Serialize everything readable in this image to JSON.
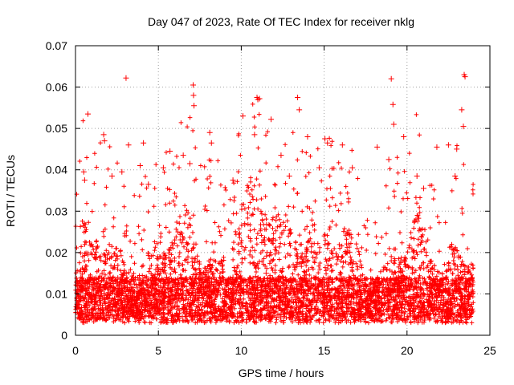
{
  "chart_data": {
    "type": "scatter",
    "title": "Day 047 of 2023, Rate Of TEC Index for receiver nklg",
    "xlabel": "GPS time / hours",
    "ylabel": "ROTI / TECUs",
    "xlim": [
      0,
      25
    ],
    "ylim": [
      0,
      0.07
    ],
    "xticks": [
      0,
      5,
      10,
      15,
      20,
      25
    ],
    "yticks": [
      0,
      0.01,
      0.02,
      0.03,
      0.04,
      0.05,
      0.06,
      0.07
    ],
    "xtick_labels": [
      "0",
      "5",
      "10",
      "15",
      "20",
      "25"
    ],
    "ytick_labels": [
      "0",
      "0.01",
      "0.02",
      "0.03",
      "0.04",
      "0.05",
      "0.06",
      "0.07"
    ],
    "grid": true,
    "marker": "plus",
    "color": "#ff0000",
    "series": [
      {
        "name": "ROTI",
        "x": [
          0.75,
          1.7,
          1.75,
          3.05,
          3.2,
          3.9,
          4.1,
          5.3,
          5.7,
          6.5,
          7.1,
          7.12,
          7.15,
          8.1,
          8.2,
          10.1,
          10.8,
          10.95,
          11.0,
          11.1,
          11.8,
          13.4,
          13.5,
          14.0,
          15.05,
          15.2,
          16.1,
          18.2,
          19.05,
          19.15,
          19.2,
          19.8,
          21.8,
          22.5,
          23.0,
          23.3,
          23.4,
          23.45,
          23.5,
          0.5,
          0.55,
          2.2,
          2.8,
          4.4,
          6.9,
          9.5,
          12.4,
          12.9,
          14.7,
          16.7,
          18.9,
          20.6,
          21.0,
          22.9,
          0.2,
          0.8,
          1.2,
          1.5,
          2.0,
          2.5,
          3.0,
          3.5,
          4.0,
          4.5,
          5.0,
          5.5,
          6.0,
          6.5,
          7.0,
          7.5,
          8.0,
          8.5,
          9.0,
          9.5,
          10.0,
          10.5,
          11.0,
          11.5,
          12.0,
          12.5,
          13.0,
          13.5,
          14.0,
          14.5,
          15.0,
          15.5,
          16.0,
          16.5,
          17.0,
          17.5,
          18.0,
          18.5,
          19.0,
          19.5,
          20.0,
          20.5,
          21.0,
          21.5,
          22.0,
          22.5,
          23.0,
          23.5,
          23.9
        ],
        "y": [
          0.0535,
          0.0485,
          0.047,
          0.0622,
          0.046,
          0.041,
          0.0465,
          0.0405,
          0.0445,
          0.0435,
          0.0605,
          0.058,
          0.0555,
          0.049,
          0.0465,
          0.053,
          0.0485,
          0.0575,
          0.057,
          0.0572,
          0.0522,
          0.0575,
          0.0545,
          0.048,
          0.0475,
          0.0465,
          0.046,
          0.0455,
          0.062,
          0.0558,
          0.051,
          0.048,
          0.0455,
          0.046,
          0.045,
          0.0545,
          0.0505,
          0.063,
          0.0625,
          0.0395,
          0.0375,
          0.0385,
          0.0395,
          0.0365,
          0.0415,
          0.0375,
          0.0435,
          0.0385,
          0.0405,
          0.0405,
          0.0425,
          0.0385,
          0.0355,
          0.0385,
          0.012,
          0.009,
          0.008,
          0.011,
          0.007,
          0.01,
          0.008,
          0.013,
          0.009,
          0.012,
          0.01,
          0.014,
          0.011,
          0.013,
          0.012,
          0.015,
          0.01,
          0.013,
          0.011,
          0.014,
          0.012,
          0.013,
          0.011,
          0.015,
          0.012,
          0.014,
          0.011,
          0.013,
          0.012,
          0.014,
          0.011,
          0.013,
          0.012,
          0.014,
          0.01,
          0.012,
          0.011,
          0.013,
          0.012,
          0.014,
          0.011,
          0.013,
          0.01,
          0.012,
          0.011,
          0.013,
          0.012,
          0.011,
          0.01
        ]
      }
    ]
  }
}
